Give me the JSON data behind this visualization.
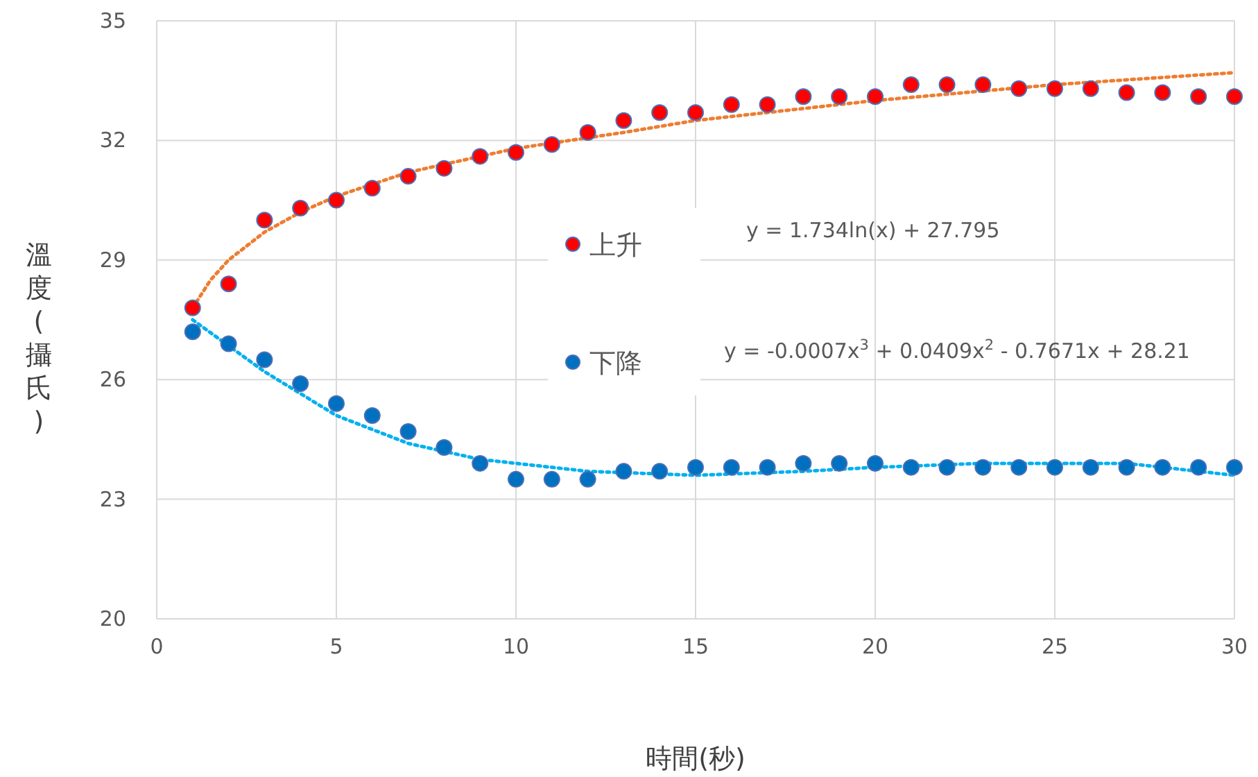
{
  "chart_data": {
    "type": "scatter",
    "xlabel": "時間(秒)",
    "ylabel": "溫度(攝氏)",
    "x": [
      1,
      2,
      3,
      4,
      5,
      6,
      7,
      8,
      9,
      10,
      11,
      12,
      13,
      14,
      15,
      16,
      17,
      18,
      19,
      20,
      21,
      22,
      23,
      24,
      25,
      26,
      27,
      28,
      29,
      30
    ],
    "series": [
      {
        "name": "上升",
        "marker": "circle",
        "color": "#ff0000",
        "values": [
          27.8,
          28.4,
          30.0,
          30.3,
          30.5,
          30.8,
          31.1,
          31.3,
          31.6,
          31.7,
          31.9,
          32.2,
          32.5,
          32.7,
          32.7,
          32.9,
          32.9,
          33.1,
          33.1,
          33.1,
          33.4,
          33.4,
          33.4,
          33.3,
          33.3,
          33.3,
          33.2,
          33.2,
          33.1,
          33.1
        ]
      },
      {
        "name": "下降",
        "marker": "circle",
        "color": "#0070c0",
        "values": [
          27.2,
          26.9,
          26.5,
          25.9,
          25.4,
          25.1,
          24.7,
          24.3,
          23.9,
          23.5,
          23.5,
          23.5,
          23.7,
          23.7,
          23.8,
          23.8,
          23.8,
          23.9,
          23.9,
          23.9,
          23.8,
          23.8,
          23.8,
          23.8,
          23.8,
          23.8,
          23.8,
          23.8,
          23.8,
          23.8
        ]
      },
      {
        "type": "line",
        "line_style": "dotted",
        "color": "#ed7d31",
        "x": [
          1,
          1.5,
          2,
          3,
          4,
          5,
          7,
          10,
          13,
          15,
          20,
          25,
          30
        ],
        "values": [
          27.8,
          28.5,
          29.0,
          29.7,
          30.2,
          30.6,
          31.2,
          31.8,
          32.2,
          32.5,
          33.0,
          33.4,
          33.7
        ]
      },
      {
        "type": "line",
        "line_style": "dotted",
        "color": "#00b0f0",
        "x": [
          1,
          3,
          5,
          7,
          9,
          10,
          12,
          15,
          18,
          20,
          23,
          25,
          27,
          28,
          30
        ],
        "values": [
          27.5,
          26.2,
          25.1,
          24.4,
          24.0,
          23.9,
          23.7,
          23.6,
          23.7,
          23.8,
          23.9,
          23.9,
          23.9,
          23.8,
          23.6
        ]
      }
    ],
    "xlim": [
      0,
      30
    ],
    "xticks": [
      0,
      5,
      10,
      15,
      20,
      25,
      30
    ],
    "ylim": [
      20,
      35
    ],
    "yticks": [
      20,
      23,
      26,
      29,
      32,
      35
    ],
    "grid": true,
    "legend": "center",
    "annotations": [
      "y = 1.734ln(x) + 27.795",
      "y = -0.0007x$^{3}$ + 0.0409x$^{2}$ - 0.7671x + 28.21"
    ]
  }
}
